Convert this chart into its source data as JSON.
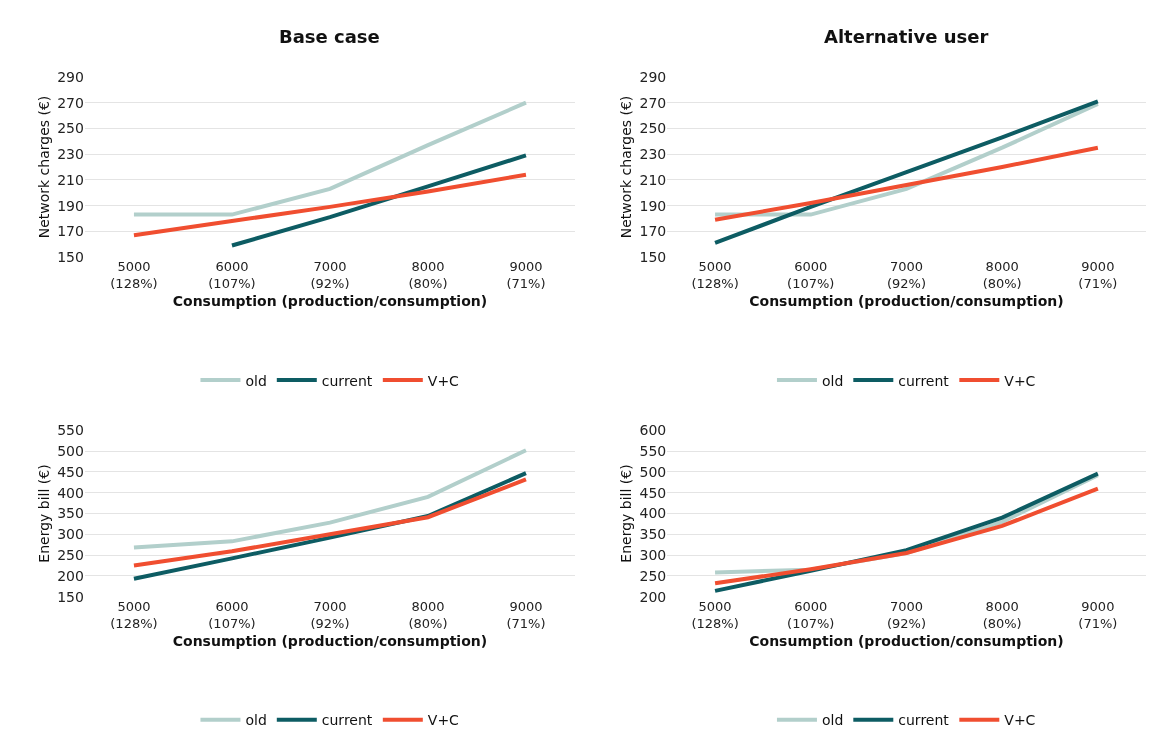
{
  "chart_data": [
    {
      "type": "line",
      "title": "Base case",
      "xlabel": "Consumption (production/consumption)",
      "ylabel": "Network charges (€)",
      "categories": [
        "5000\n(128%)",
        "6000\n(107%)",
        "7000\n(92%)",
        "8000\n(80%)",
        "9000\n(71%)"
      ],
      "ylim": [
        150,
        290
      ],
      "yticks": [
        150,
        170,
        190,
        210,
        230,
        250,
        270,
        290
      ],
      "grid": "y",
      "legend": "bottom",
      "marker": "none",
      "line_style": "solid",
      "series": [
        {
          "name": "old",
          "color": "#b2cfcb",
          "values": [
            183,
            183,
            203,
            237,
            270
          ]
        },
        {
          "name": "current",
          "color": "#0d5c63",
          "values": [
            null,
            159,
            181,
            205,
            229
          ]
        },
        {
          "name": "V+C",
          "color": "#f04e30",
          "values": [
            167,
            178,
            189,
            201,
            214
          ]
        }
      ]
    },
    {
      "type": "line",
      "title": "Alternative user",
      "xlabel": "Consumption (production/consumption)",
      "ylabel": "Network charges (€)",
      "categories": [
        "5000\n(128%)",
        "6000\n(107%)",
        "7000\n(92%)",
        "8000\n(80%)",
        "9000\n(71%)"
      ],
      "ylim": [
        150,
        290
      ],
      "yticks": [
        150,
        170,
        190,
        210,
        230,
        250,
        270,
        290
      ],
      "grid": "y",
      "legend": "bottom",
      "marker": "none",
      "line_style": "solid",
      "series": [
        {
          "name": "old",
          "color": "#b2cfcb",
          "values": [
            183,
            183,
            203,
            235,
            269
          ]
        },
        {
          "name": "current",
          "color": "#0d5c63",
          "values": [
            161,
            189,
            216,
            243,
            271
          ]
        },
        {
          "name": "V+C",
          "color": "#f04e30",
          "values": [
            179,
            192,
            206,
            220,
            235
          ]
        }
      ]
    },
    {
      "type": "line",
      "xlabel": "Consumption (production/consumption)",
      "ylabel": "Energy bill (€)",
      "categories": [
        "5000\n(128%)",
        "6000\n(107%)",
        "7000\n(92%)",
        "8000\n(80%)",
        "9000\n(71%)"
      ],
      "ylim": [
        150,
        550
      ],
      "yticks": [
        150,
        200,
        250,
        300,
        350,
        400,
        450,
        500,
        550
      ],
      "grid": "y",
      "legend": "bottom",
      "marker": "none",
      "line_style": "solid",
      "series": [
        {
          "name": "old",
          "color": "#b2cfcb",
          "values": [
            268,
            283,
            328,
            390,
            502
          ]
        },
        {
          "name": "current",
          "color": "#0d5c63",
          "values": [
            193,
            242,
            292,
            344,
            447
          ]
        },
        {
          "name": "V+C",
          "color": "#f04e30",
          "values": [
            225,
            259,
            300,
            341,
            432
          ]
        }
      ]
    },
    {
      "type": "line",
      "xlabel": "Consumption (production/consumption)",
      "ylabel": "Energy bill (€)",
      "categories": [
        "5000\n(128%)",
        "6000\n(107%)",
        "7000\n(92%)",
        "8000\n(80%)",
        "9000\n(71%)"
      ],
      "ylim": [
        200,
        600
      ],
      "yticks": [
        200,
        250,
        300,
        350,
        400,
        450,
        500,
        550,
        600
      ],
      "grid": "y",
      "legend": "bottom",
      "marker": "none",
      "line_style": "solid",
      "series": [
        {
          "name": "old",
          "color": "#b2cfcb",
          "values": [
            258,
            265,
            305,
            380,
            492
          ]
        },
        {
          "name": "current",
          "color": "#0d5c63",
          "values": [
            214,
            262,
            312,
            390,
            496
          ]
        },
        {
          "name": "V+C",
          "color": "#f04e30",
          "values": [
            232,
            266,
            305,
            370,
            460
          ]
        }
      ]
    }
  ]
}
